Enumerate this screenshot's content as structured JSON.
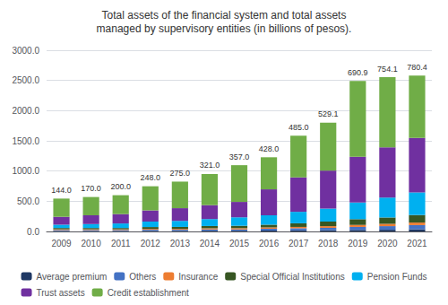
{
  "chart_data": {
    "type": "bar",
    "title": "Total assets of the financial system and total assets\nmanaged by supervisory entities (in billions of pesos).",
    "categories": [
      "2009",
      "2010",
      "2011",
      "2012",
      "2013",
      "2014",
      "2015",
      "2016",
      "2017",
      "2018",
      "2019",
      "2020",
      "2021"
    ],
    "series": [
      {
        "name": "Average premium",
        "color": "#1f3864",
        "values": [
          8,
          8,
          8,
          10,
          10,
          12,
          12,
          15,
          18,
          20,
          25,
          28,
          35
        ]
      },
      {
        "name": "Others",
        "color": "#4472c4",
        "values": [
          15,
          15,
          15,
          18,
          18,
          22,
          22,
          30,
          35,
          40,
          50,
          60,
          70
        ]
      },
      {
        "name": "Insurance",
        "color": "#ed7d31",
        "values": [
          12,
          12,
          12,
          15,
          15,
          18,
          20,
          22,
          22,
          28,
          33,
          38,
          42
        ]
      },
      {
        "name": "Special Official Institutions",
        "color": "#375623",
        "values": [
          22,
          22,
          22,
          30,
          32,
          38,
          40,
          45,
          60,
          75,
          95,
          105,
          125
        ]
      },
      {
        "name": "Pension Funds",
        "color": "#00b0f0",
        "values": [
          55,
          65,
          75,
          90,
          100,
          115,
          140,
          155,
          190,
          215,
          275,
          330,
          375
        ]
      },
      {
        "name": "Trust assets",
        "color": "#7030a0",
        "values": [
          130,
          145,
          155,
          185,
          210,
          230,
          255,
          430,
          570,
          630,
          760,
          830,
          900
        ]
      },
      {
        "name": "Credit establishment",
        "color": "#70ad47",
        "values": [
          302,
          303,
          313,
          400,
          440,
          516,
          608,
          531,
          690,
          791,
          1253,
          1163,
          1033
        ]
      }
    ],
    "annotations": [
      {
        "x": "2009",
        "text": "144.0"
      },
      {
        "x": "2010",
        "text": "170.0"
      },
      {
        "x": "2011",
        "text": "200.0"
      },
      {
        "x": "2012",
        "text": "248.0"
      },
      {
        "x": "2013",
        "text": "275.0"
      },
      {
        "x": "2014",
        "text": "321.0"
      },
      {
        "x": "2015",
        "text": "357.0"
      },
      {
        "x": "2016",
        "text": "428.0"
      },
      {
        "x": "2017",
        "text": "485.0"
      },
      {
        "x": "2018",
        "text": "529.1"
      },
      {
        "x": "2019",
        "text": "690.9"
      },
      {
        "x": "2020",
        "text": "754.1"
      },
      {
        "x": "2021",
        "text": "780.4"
      }
    ],
    "stacked": true,
    "ylim": [
      0,
      3000
    ],
    "yticks": [
      {
        "value": 0,
        "label": "0.0"
      },
      {
        "value": 500,
        "label": "500.0"
      },
      {
        "value": 1000,
        "label": "1000.0"
      },
      {
        "value": 1500,
        "label": "1500.0"
      },
      {
        "value": 2000,
        "label": "2000.0"
      },
      {
        "value": 2500,
        "label": "2500.0"
      },
      {
        "value": 3000,
        "label": "3000.0"
      }
    ],
    "grid": true,
    "legend": "bottom"
  }
}
